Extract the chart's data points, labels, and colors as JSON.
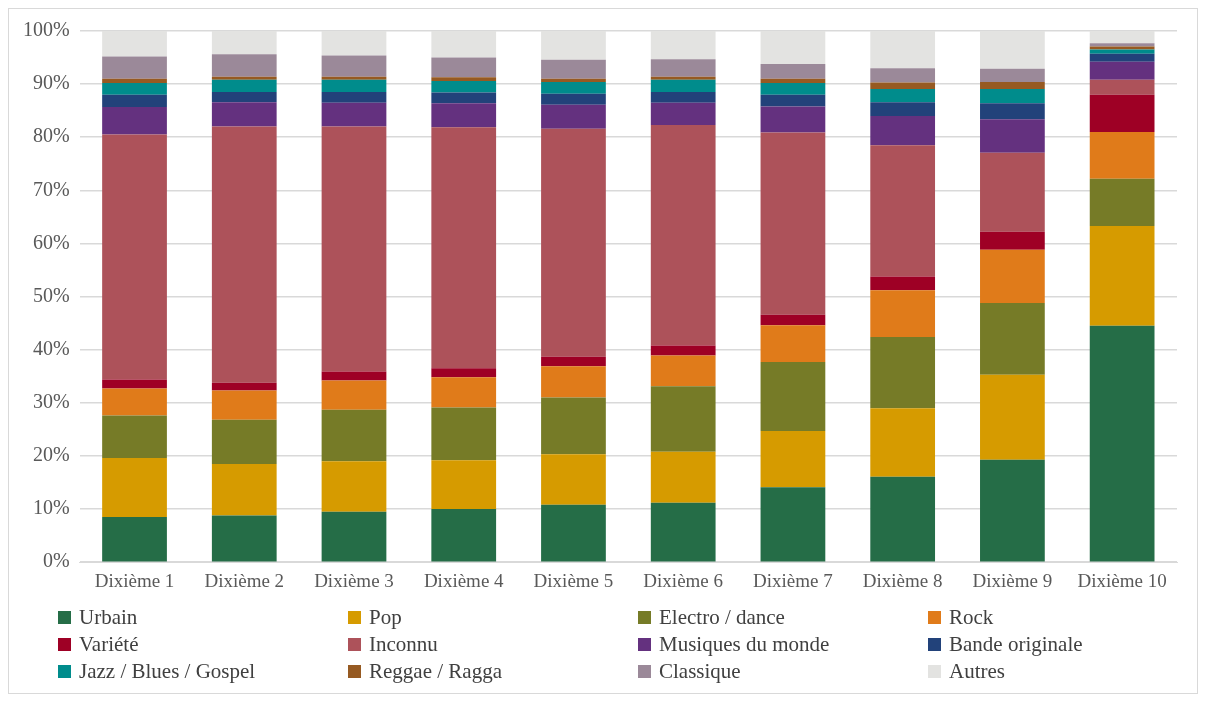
{
  "chart_data": {
    "type": "bar",
    "stacked": true,
    "categories": [
      "Dixième 1",
      "Dixième 2",
      "Dixième 3",
      "Dixième 4",
      "Dixième 5",
      "Dixième 6",
      "Dixième 7",
      "Dixième 8",
      "Dixième 9",
      "Dixième 10"
    ],
    "series": [
      {
        "name": "Urbain",
        "color": "#256d47",
        "values": [
          8.5,
          8.8,
          9.5,
          10.0,
          10.8,
          11.2,
          14.1,
          16.1,
          19.3,
          44.5
        ]
      },
      {
        "name": "Pop",
        "color": "#d69b00",
        "values": [
          11.1,
          9.7,
          9.5,
          9.2,
          9.5,
          9.6,
          10.6,
          12.9,
          16.0,
          18.8
        ]
      },
      {
        "name": "Electro / dance",
        "color": "#767b27",
        "values": [
          8.0,
          8.3,
          9.7,
          9.9,
          10.7,
          12.3,
          13.0,
          13.4,
          13.5,
          8.9
        ]
      },
      {
        "name": "Rock",
        "color": "#e07b1a",
        "values": [
          5.1,
          5.5,
          5.5,
          5.7,
          5.9,
          5.8,
          6.9,
          8.8,
          10.0,
          8.8
        ]
      },
      {
        "name": "Variété",
        "color": "#9e0025",
        "values": [
          1.7,
          1.5,
          1.7,
          1.7,
          1.8,
          1.9,
          2.0,
          2.6,
          3.4,
          7.0
        ]
      },
      {
        "name": "Inconnu",
        "color": "#ad525a",
        "values": [
          46.1,
          48.2,
          46.1,
          45.4,
          42.9,
          41.5,
          34.3,
          24.7,
          14.9,
          2.8
        ]
      },
      {
        "name": "Musiques du monde",
        "color": "#64317f",
        "values": [
          5.2,
          4.6,
          4.5,
          4.5,
          4.5,
          4.2,
          4.9,
          5.5,
          6.3,
          3.4
        ]
      },
      {
        "name": "Bande originale",
        "color": "#22427a",
        "values": [
          2.3,
          1.9,
          2.0,
          2.0,
          2.1,
          2.0,
          2.2,
          2.6,
          3.0,
          1.5
        ]
      },
      {
        "name": "Jazz / Blues / Gospel",
        "color": "#008c8c",
        "values": [
          2.2,
          2.3,
          2.3,
          2.2,
          2.2,
          2.3,
          2.2,
          2.5,
          2.7,
          0.8
        ]
      },
      {
        "name": "Reggae / Ragga",
        "color": "#965a22",
        "values": [
          0.8,
          0.6,
          0.6,
          0.7,
          0.6,
          0.6,
          0.8,
          1.2,
          1.3,
          0.6
        ]
      },
      {
        "name": "Classique",
        "color": "#9b8999",
        "values": [
          4.2,
          4.2,
          4.0,
          3.7,
          3.6,
          3.3,
          2.8,
          2.7,
          2.5,
          0.6
        ]
      },
      {
        "name": "Autres",
        "color": "#e3e3e1",
        "values": [
          4.8,
          4.4,
          4.6,
          5.0,
          5.4,
          5.3,
          6.2,
          7.0,
          7.1,
          2.3
        ]
      }
    ],
    "ylim": [
      0,
      100
    ],
    "yticks": [
      {
        "value": 0,
        "label": "0%"
      },
      {
        "value": 10,
        "label": "10%"
      },
      {
        "value": 20,
        "label": "20%"
      },
      {
        "value": 30,
        "label": "30%"
      },
      {
        "value": 40,
        "label": "40%"
      },
      {
        "value": 50,
        "label": "50%"
      },
      {
        "value": 60,
        "label": "60%"
      },
      {
        "value": 70,
        "label": "70%"
      },
      {
        "value": 80,
        "label": "80%"
      },
      {
        "value": 90,
        "label": "90%"
      },
      {
        "value": 100,
        "label": "100%"
      }
    ],
    "grid": "y",
    "legend": "bottom"
  }
}
